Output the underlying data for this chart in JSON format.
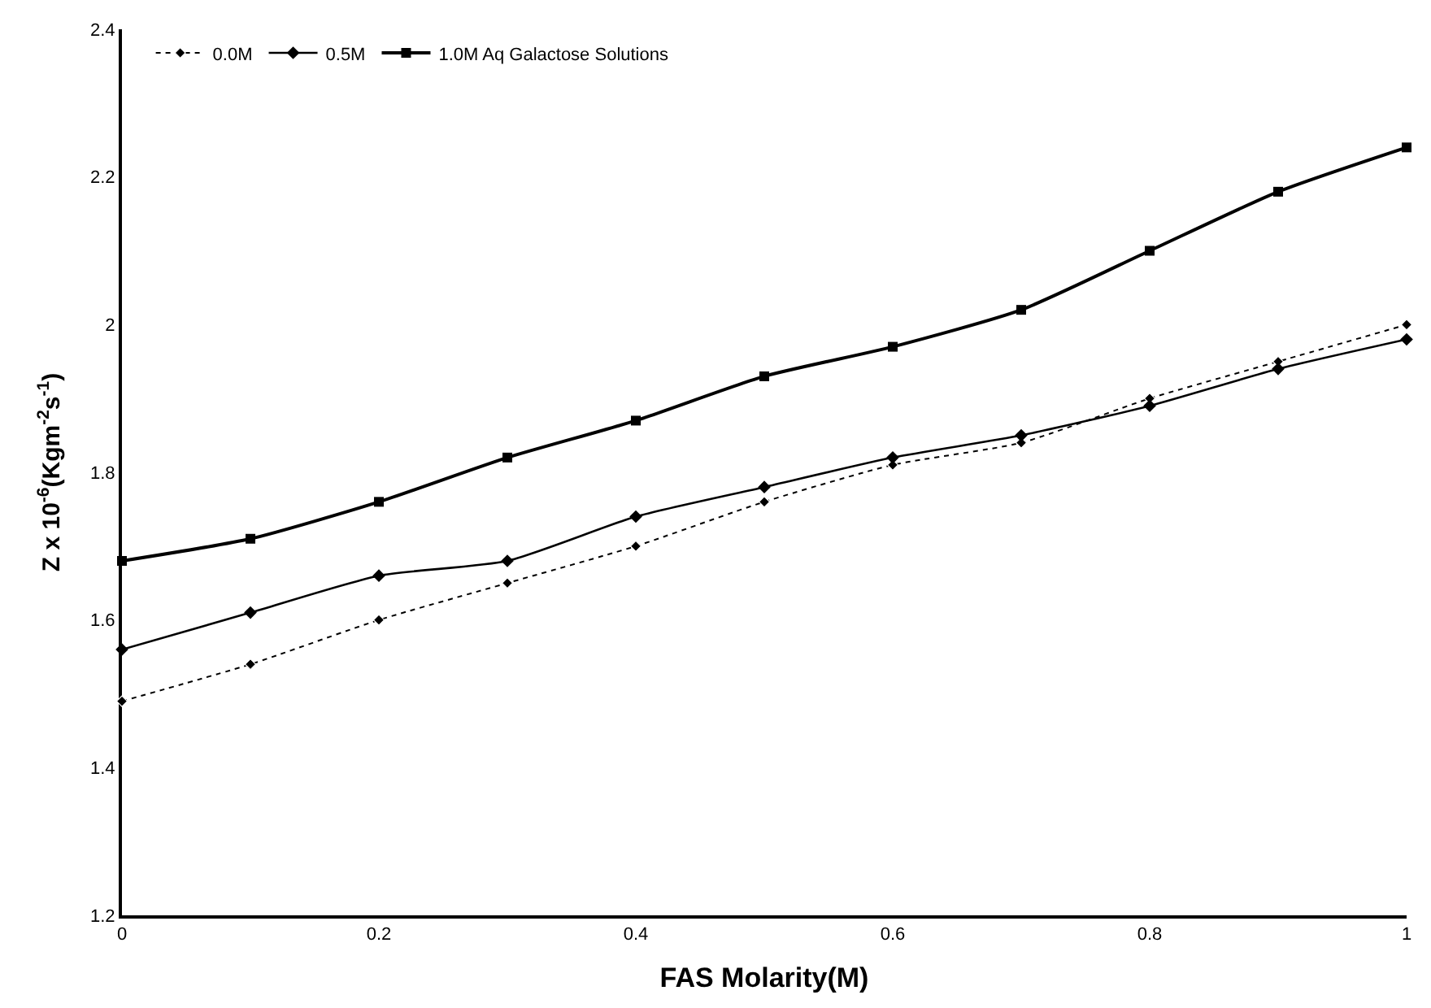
{
  "chart_data": {
    "type": "line",
    "xlabel": "FAS Molarity(M)",
    "ylabel": "Z x 10$^{-6}$(Kgm$^{-2}$s$^{-1}$)",
    "x": [
      0,
      0.1,
      0.2,
      0.3,
      0.4,
      0.5,
      0.6,
      0.7,
      0.8,
      0.9,
      1
    ],
    "xlim": [
      0,
      1
    ],
    "xticks": [
      0,
      0.2,
      0.4,
      0.6,
      0.8,
      1
    ],
    "ylim": [
      1.2,
      2.4
    ],
    "yticks": [
      1.2,
      1.4,
      1.6,
      1.8,
      2,
      2.2,
      2.4
    ],
    "legend": "top left",
    "series": [
      {
        "name": "0.0M",
        "color": "#000000",
        "marker": "diamond",
        "line_style": "dotted",
        "values": [
          1.49,
          1.54,
          1.6,
          1.65,
          1.7,
          1.76,
          1.81,
          1.84,
          1.9,
          1.95,
          2.0
        ]
      },
      {
        "name": "0.5M",
        "color": "#000000",
        "marker": "diamond",
        "line_style": "solid",
        "values": [
          1.56,
          1.61,
          1.66,
          1.68,
          1.74,
          1.78,
          1.82,
          1.85,
          1.89,
          1.94,
          1.98
        ]
      },
      {
        "name": "1.0M Aq Galactose Solutions",
        "color": "#000000",
        "marker": "square",
        "line_style": "solid",
        "values": [
          1.68,
          1.71,
          1.76,
          1.82,
          1.87,
          1.93,
          1.97,
          2.02,
          2.1,
          2.18,
          2.24
        ]
      }
    ]
  }
}
